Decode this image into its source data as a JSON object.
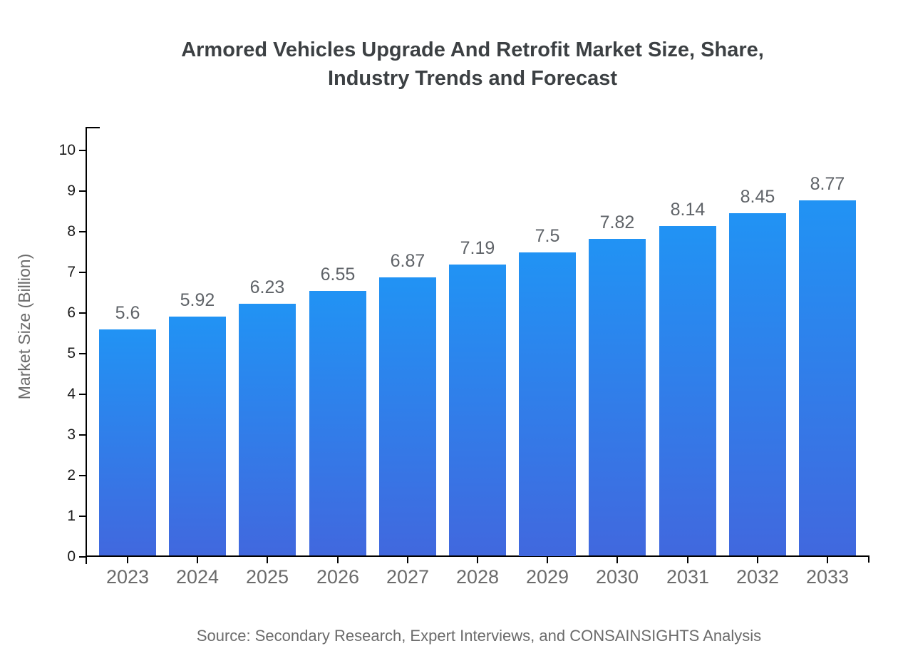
{
  "header": {
    "title_lines": [
      "Armored Vehicles Upgrade And Retrofit Market Size, Share,",
      "Industry Trends and Forecast"
    ]
  },
  "chart_data": {
    "type": "bar",
    "title": "Armored Vehicles Upgrade And Retrofit Market Size, Share, Industry Trends and Forecast",
    "categories": [
      "2023",
      "2024",
      "2025",
      "2026",
      "2027",
      "2028",
      "2029",
      "2030",
      "2031",
      "2032",
      "2033"
    ],
    "values": [
      5.6,
      5.92,
      6.23,
      6.55,
      6.87,
      7.19,
      7.5,
      7.82,
      8.14,
      8.45,
      8.77
    ],
    "value_labels": [
      "5.6",
      "5.92",
      "6.23",
      "6.55",
      "6.87",
      "7.19",
      "7.5",
      "7.82",
      "8.14",
      "8.45",
      "8.77"
    ],
    "xlabel": "",
    "ylabel": "Market Size (Billion)",
    "ylim": [
      0,
      10
    ],
    "yticks": [
      0,
      1,
      2,
      3,
      4,
      5,
      6,
      7,
      8,
      9,
      10
    ],
    "grid": false,
    "legend": "none",
    "colors": {
      "bar_gradient_top": "#2193f4",
      "bar_gradient_bottom": "#4168de",
      "axis": "#000000",
      "y_tick_label": "#1a1a1a",
      "x_tick_label": "#6b6b6b",
      "value_label": "#5f6368",
      "title": "#3c4043",
      "axis_label": "#6b6b6b"
    }
  },
  "footer": {
    "source": "Source: Secondary Research, Expert Interviews, and CONSAINSIGHTS Analysis"
  }
}
